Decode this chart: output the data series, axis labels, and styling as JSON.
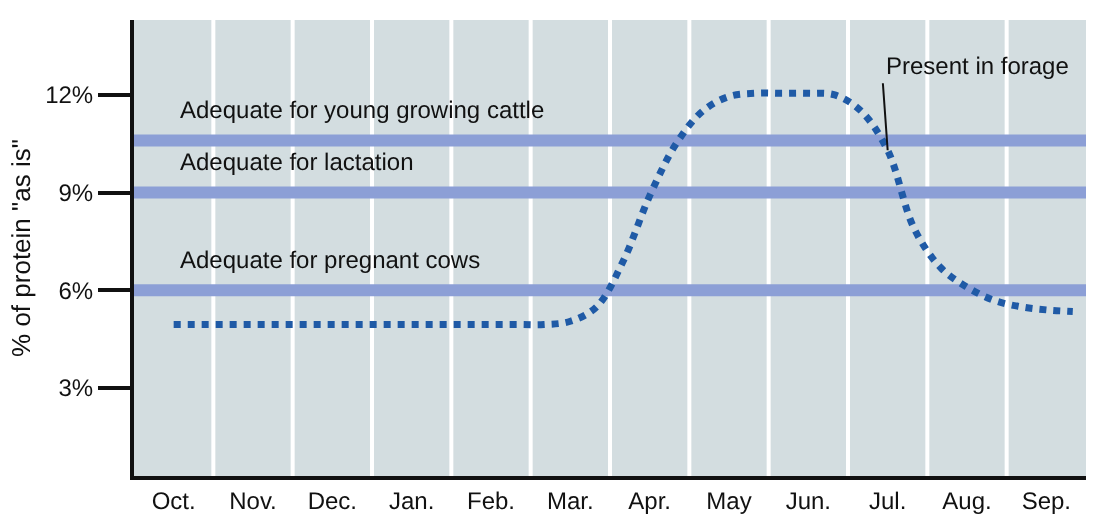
{
  "chart_data": {
    "type": "line",
    "ylabel": "% of protein \"as is\"",
    "categories": [
      null,
      "Oct.",
      null,
      null,
      "Nov.",
      null,
      null,
      "Dec.",
      null,
      null,
      "Jan.",
      null,
      null,
      "Feb.",
      null,
      null,
      "Mar.",
      null,
      null,
      "Apr.",
      null,
      null,
      "May",
      null,
      null,
      "Jun.",
      null,
      null,
      "Jul.",
      null,
      null,
      "Aug.",
      null,
      null,
      "Sep.",
      null
    ],
    "ylim": [
      0.3,
      14.3
    ],
    "yticks": [
      {
        "value": 3,
        "label": "3%"
      },
      {
        "value": 6,
        "label": "6%"
      },
      {
        "value": 9,
        "label": "9%"
      },
      {
        "value": 12,
        "label": "12%"
      }
    ],
    "grid": "x",
    "marker": "none",
    "line_style": "dotted",
    "series": [
      {
        "color": "#1f5aa6",
        "values": [
          null,
          4.95,
          4.95,
          4.95,
          4.95,
          4.95,
          4.95,
          4.95,
          4.95,
          4.95,
          4.95,
          4.95,
          4.95,
          4.95,
          4.95,
          4.95,
          5.05,
          5.5,
          6.9,
          8.9,
          10.5,
          11.5,
          11.95,
          12.05,
          12.05,
          12.05,
          12.0,
          11.5,
          10.3,
          7.9,
          6.7,
          6.1,
          5.7,
          5.5,
          5.4,
          5.35
        ]
      }
    ],
    "ref_lines": [
      {
        "axis": "y",
        "value": 10.6,
        "label": "Adequate for young growing cattle",
        "color": "#8c9fd6"
      },
      {
        "axis": "y",
        "value": 9,
        "label": "Adequate for lactation",
        "color": "#8c9fd6"
      },
      {
        "axis": "y",
        "value": 6,
        "label": "Adequate for pregnant cows",
        "color": "#8c9fd6"
      }
    ],
    "annotations": [
      {
        "text": "Present in forage",
        "x": "Jul.",
        "y": 10.3
      }
    ]
  }
}
